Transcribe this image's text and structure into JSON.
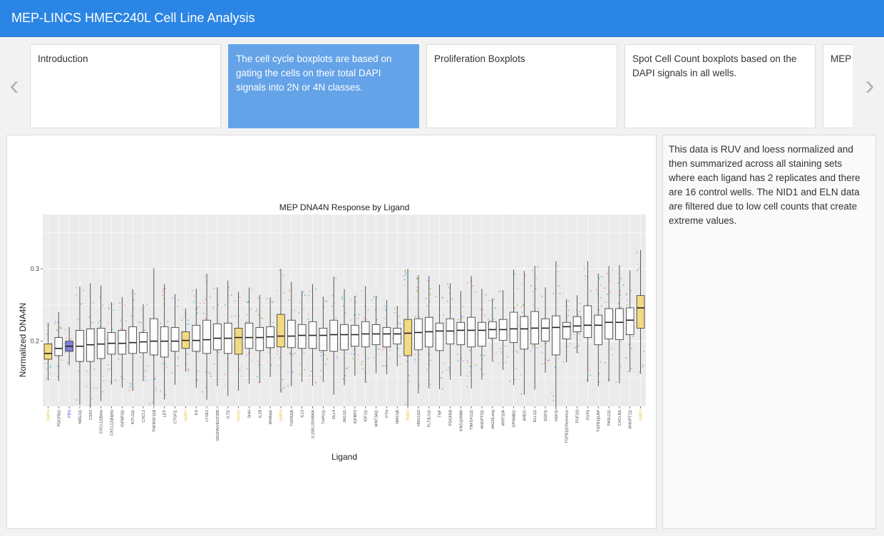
{
  "header": {
    "title": "MEP-LINCS HMEC240L Cell Line Analysis"
  },
  "carousel": {
    "cards": [
      {
        "label": "Introduction",
        "active": false
      },
      {
        "label": "The cell cycle boxplots are based on gating the cells on their total DAPI signals into 2N or 4N classes.",
        "active": true
      },
      {
        "label": "Proliferation Boxplots",
        "active": false
      },
      {
        "label": "Spot Cell Count boxplots based on the DAPI signals in all wells.",
        "active": false
      },
      {
        "label": "MEP l data t value",
        "active": false
      }
    ]
  },
  "description": "This data is RUV and loess normalized and then summarized across all staining sets where each ligand has 2 replicates and there are 16 control wells. The NID1 and ELN data are filtered due to low cell counts that create extreme values.",
  "chart_data": {
    "type": "box",
    "title": "MEP DNA4N Response by Ligand",
    "xlabel": "Ligand",
    "ylabel": "Normalized DNA4N",
    "ylim": [
      0.11,
      0.375
    ],
    "yticks": [
      0.2,
      0.3
    ],
    "grid": true,
    "colors": {
      "default": "#ffffff",
      "highlight": "#f5d76e",
      "pbs": "#6b6bd6",
      "panel": "#ebebeb"
    },
    "categories": [
      "BMP6",
      "PDGFB|1",
      "PBS",
      "NRG1|1",
      "CSF2",
      "CXCL12|Beta",
      "CXCL12|Alpha",
      "IGFBP3|1",
      "KITLG|1",
      "CXCL1",
      "TNFRSF11B",
      "LEP",
      "CTGF|1",
      "BMP7",
      "IL6",
      "LYVE1",
      "VEGFA|VEGF206",
      "IL7|1",
      "SHH|1",
      "SHH",
      "IL1B",
      "Wnt5a|1",
      "BMP4",
      "TGFB2|A",
      "IL13",
      "IL15|IL15S48AA",
      "THPO|1",
      "DLL4",
      "JAG1|1",
      "IGFBP2",
      "IGF1|1",
      "WNT3A|1",
      "PTN",
      "NRG1|6",
      "BMP2",
      "NRG1|10",
      "FLT3LG|1",
      "TNF",
      "PDGFAB",
      "KNG1|HMW",
      "TNFSF11|1",
      "ANGPT2|1",
      "JAG2|Long",
      "WNT10A",
      "GPNMB|1",
      "AREG",
      "DLL1|1",
      "EGF|1",
      "HGF|1",
      "TGFB1||Chemimus",
      "FGF2|3",
      "FGF6",
      "TGFB1||LAP",
      "FASLG|1",
      "CXCL8|1",
      "ANGPT1|1",
      "BMP3"
    ],
    "series": [
      {
        "medians": [
          0.183,
          0.19,
          0.193,
          0.193,
          0.195,
          0.196,
          0.197,
          0.197,
          0.198,
          0.199,
          0.2,
          0.2,
          0.2,
          0.201,
          0.201,
          0.202,
          0.204,
          0.204,
          0.205,
          0.205,
          0.205,
          0.206,
          0.207,
          0.207,
          0.208,
          0.208,
          0.208,
          0.209,
          0.209,
          0.209,
          0.21,
          0.21,
          0.21,
          0.21,
          0.211,
          0.212,
          0.213,
          0.214,
          0.214,
          0.215,
          0.215,
          0.215,
          0.216,
          0.216,
          0.217,
          0.217,
          0.218,
          0.218,
          0.219,
          0.22,
          0.221,
          0.222,
          0.222,
          0.226,
          0.226,
          0.229,
          0.246
        ],
        "q1": [
          0.175,
          0.18,
          0.186,
          0.172,
          0.172,
          0.176,
          0.182,
          0.182,
          0.183,
          0.184,
          0.181,
          0.178,
          0.186,
          0.19,
          0.186,
          0.183,
          0.188,
          0.183,
          0.182,
          0.19,
          0.187,
          0.191,
          0.192,
          0.191,
          0.19,
          0.19,
          0.187,
          0.186,
          0.188,
          0.193,
          0.192,
          0.195,
          0.192,
          0.196,
          0.18,
          0.188,
          0.192,
          0.187,
          0.196,
          0.195,
          0.192,
          0.193,
          0.204,
          0.201,
          0.198,
          0.189,
          0.196,
          0.2,
          0.181,
          0.203,
          0.213,
          0.205,
          0.195,
          0.203,
          0.202,
          0.209,
          0.218
        ],
        "q3": [
          0.196,
          0.205,
          0.2,
          0.215,
          0.217,
          0.218,
          0.212,
          0.215,
          0.22,
          0.212,
          0.231,
          0.22,
          0.219,
          0.213,
          0.222,
          0.229,
          0.224,
          0.225,
          0.218,
          0.225,
          0.219,
          0.22,
          0.237,
          0.229,
          0.223,
          0.227,
          0.218,
          0.229,
          0.223,
          0.222,
          0.227,
          0.223,
          0.219,
          0.218,
          0.23,
          0.231,
          0.233,
          0.225,
          0.231,
          0.226,
          0.233,
          0.226,
          0.227,
          0.23,
          0.24,
          0.234,
          0.241,
          0.231,
          0.235,
          0.226,
          0.234,
          0.249,
          0.236,
          0.245,
          0.245,
          0.246,
          0.263
        ]
      }
    ]
  }
}
